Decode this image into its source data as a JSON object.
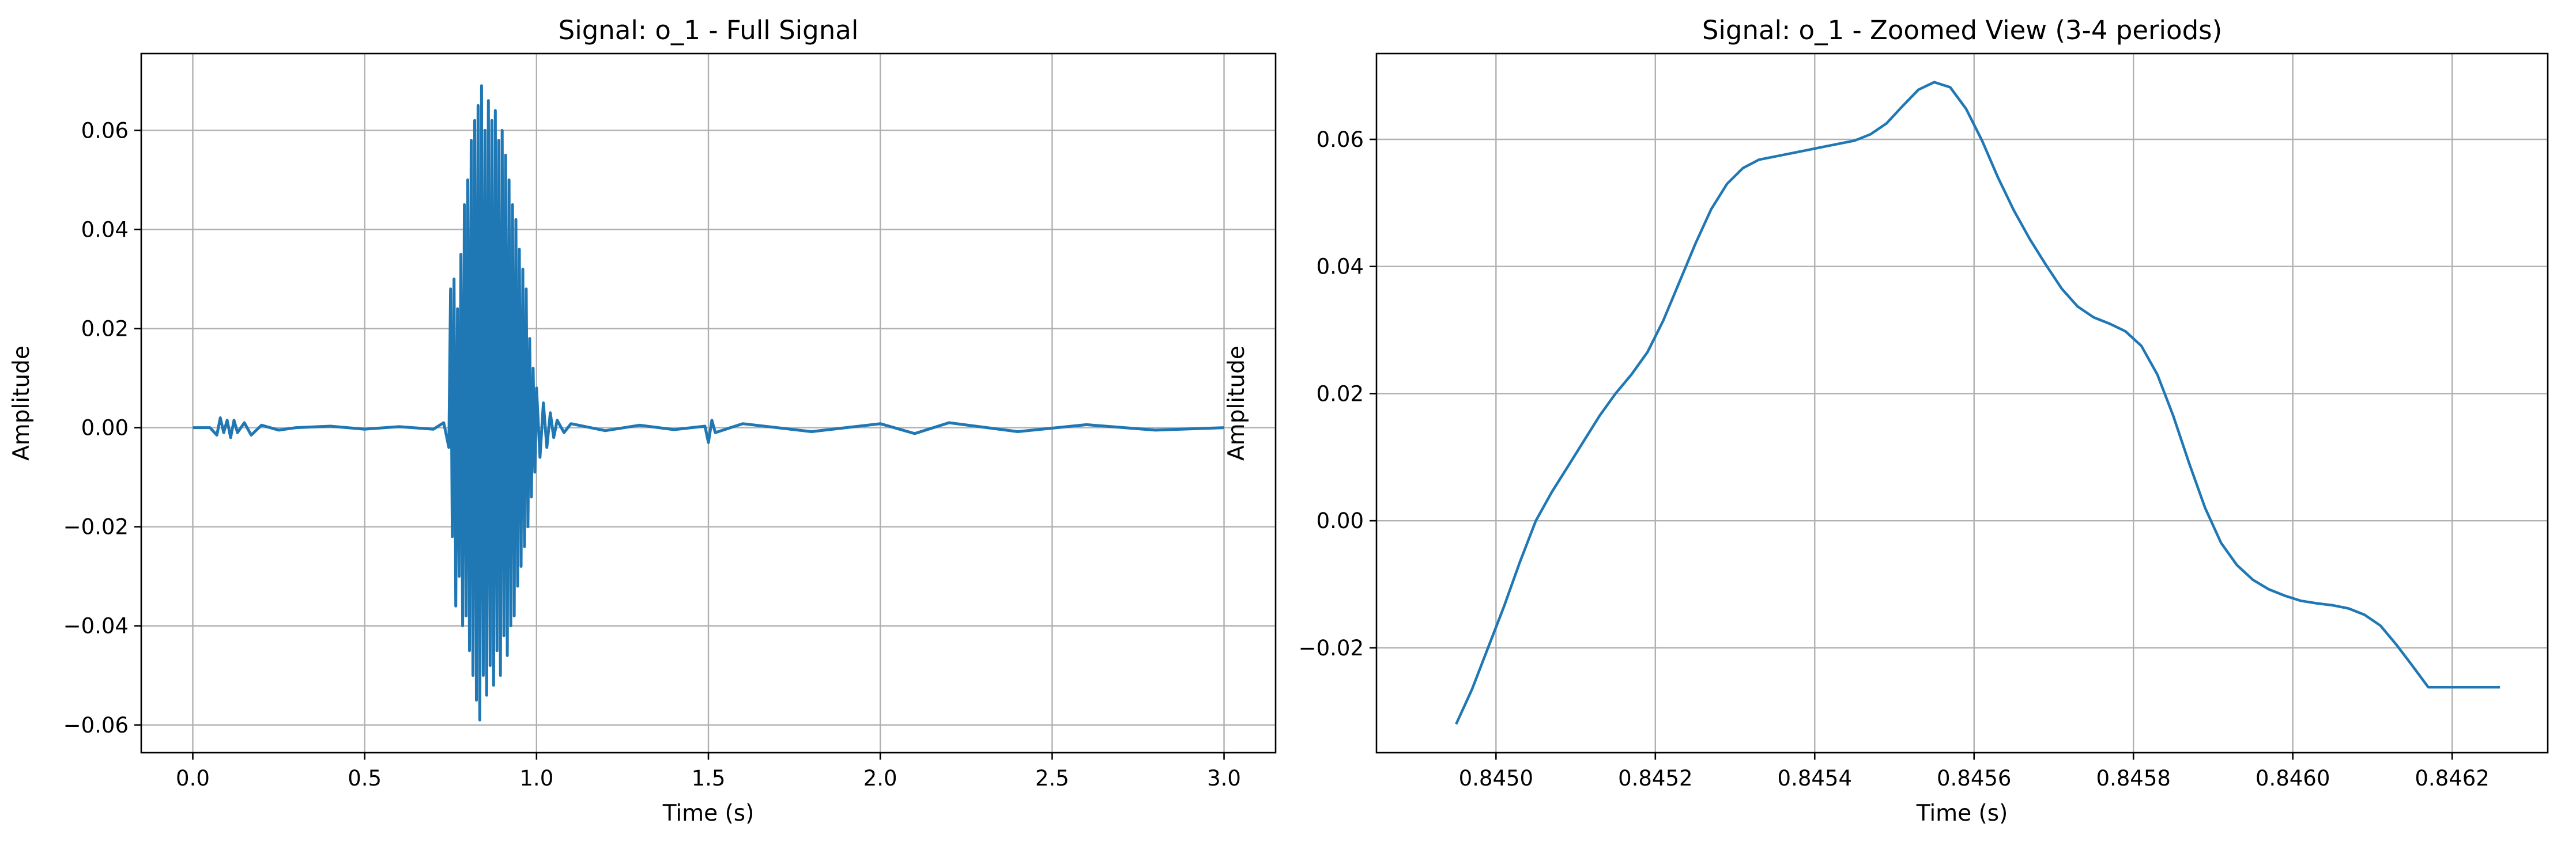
{
  "chart_data": [
    {
      "type": "line",
      "title": "Signal: o_1 - Full Signal",
      "xlabel": "Time (s)",
      "ylabel": "Amplitude",
      "xlim": [
        -0.15,
        3.15
      ],
      "ylim": [
        -0.0656,
        0.0755
      ],
      "xticks": [
        0.0,
        0.5,
        1.0,
        1.5,
        2.0,
        2.5,
        3.0
      ],
      "xtick_labels": [
        "0.0",
        "0.5",
        "1.0",
        "1.5",
        "2.0",
        "2.5",
        "3.0"
      ],
      "yticks": [
        -0.06,
        -0.04,
        -0.02,
        0.0,
        0.02,
        0.04,
        0.06
      ],
      "ytick_labels": [
        "−0.06",
        "−0.04",
        "−0.02",
        "0.00",
        "0.02",
        "0.04",
        "0.06"
      ],
      "grid": true,
      "color": "#1f77b4",
      "series": [
        {
          "x": [
            0.0,
            0.05,
            0.07,
            0.08,
            0.09,
            0.1,
            0.11,
            0.12,
            0.13,
            0.15,
            0.17,
            0.2,
            0.25,
            0.3,
            0.4,
            0.5,
            0.6,
            0.7,
            0.73,
            0.745,
            0.75,
            0.755,
            0.76,
            0.765,
            0.77,
            0.775,
            0.78,
            0.785,
            0.79,
            0.795,
            0.8,
            0.805,
            0.81,
            0.815,
            0.82,
            0.825,
            0.83,
            0.835,
            0.84,
            0.845,
            0.85,
            0.855,
            0.86,
            0.865,
            0.87,
            0.875,
            0.88,
            0.885,
            0.89,
            0.895,
            0.9,
            0.905,
            0.91,
            0.915,
            0.92,
            0.925,
            0.93,
            0.935,
            0.94,
            0.945,
            0.95,
            0.955,
            0.96,
            0.965,
            0.97,
            0.975,
            0.98,
            0.985,
            0.99,
            0.995,
            1.0,
            1.01,
            1.02,
            1.03,
            1.04,
            1.05,
            1.06,
            1.08,
            1.1,
            1.2,
            1.3,
            1.4,
            1.49,
            1.5,
            1.51,
            1.52,
            1.6,
            1.8,
            2.0,
            2.1,
            2.2,
            2.4,
            2.6,
            2.8,
            3.0
          ],
          "y": [
            0.0,
            0.0,
            -0.0015,
            0.002,
            -0.001,
            0.0015,
            -0.002,
            0.0015,
            -0.001,
            0.001,
            -0.0015,
            0.0005,
            -0.0005,
            0.0,
            0.0003,
            -0.0003,
            0.0002,
            -0.0003,
            0.001,
            -0.004,
            0.028,
            -0.022,
            0.03,
            -0.036,
            0.024,
            -0.03,
            0.035,
            -0.04,
            0.045,
            -0.038,
            0.05,
            -0.045,
            0.058,
            -0.05,
            0.062,
            -0.055,
            0.065,
            -0.059,
            0.069,
            -0.05,
            0.06,
            -0.054,
            0.066,
            -0.048,
            0.062,
            -0.052,
            0.064,
            -0.045,
            0.058,
            -0.05,
            0.06,
            -0.042,
            0.055,
            -0.046,
            0.05,
            -0.04,
            0.045,
            -0.038,
            0.042,
            -0.032,
            0.036,
            -0.028,
            0.032,
            -0.024,
            0.028,
            -0.02,
            0.018,
            -0.014,
            0.012,
            -0.009,
            0.008,
            -0.006,
            0.005,
            -0.004,
            0.003,
            -0.002,
            0.0015,
            -0.001,
            0.0008,
            -0.0006,
            0.0005,
            -0.0004,
            0.0003,
            -0.003,
            0.0015,
            -0.001,
            0.0008,
            -0.0008,
            0.0008,
            -0.0012,
            0.001,
            -0.0008,
            0.0006,
            -0.0005,
            0.0
          ]
        }
      ]
    },
    {
      "type": "line",
      "title": "Signal: o_1 - Zoomed View (3-4 periods)",
      "xlabel": "Time (s)",
      "ylabel": "Amplitude",
      "xlim": [
        0.84485,
        0.84632
      ],
      "ylim": [
        -0.0365,
        0.0735
      ],
      "xticks": [
        0.845,
        0.8452,
        0.8454,
        0.8456,
        0.8458,
        0.846,
        0.8462
      ],
      "xtick_labels": [
        "0.8450",
        "0.8452",
        "0.8454",
        "0.8456",
        "0.8458",
        "0.8460",
        "0.8462"
      ],
      "yticks": [
        -0.02,
        0.0,
        0.02,
        0.04,
        0.06
      ],
      "ytick_labels": [
        "−0.02",
        "0.00",
        "0.02",
        "0.04",
        "0.06"
      ],
      "grid": true,
      "color": "#1f77b4",
      "series": [
        {
          "x": [
            0.84495,
            0.84497,
            0.84499,
            0.84501,
            0.84503,
            0.84505,
            0.84507,
            0.84509,
            0.84511,
            0.84513,
            0.84515,
            0.84517,
            0.84519,
            0.84521,
            0.84523,
            0.84525,
            0.84527,
            0.84529,
            0.84531,
            0.84533,
            0.84535,
            0.84537,
            0.84539,
            0.84541,
            0.84543,
            0.84545,
            0.84547,
            0.84549,
            0.84551,
            0.84553,
            0.84555,
            0.84557,
            0.84559,
            0.84561,
            0.84563,
            0.84565,
            0.84567,
            0.84569,
            0.84571,
            0.84573,
            0.84575,
            0.84577,
            0.84579,
            0.84581,
            0.84583,
            0.84585,
            0.84587,
            0.84589,
            0.84591,
            0.84593,
            0.84595,
            0.84597,
            0.84599,
            0.84601,
            0.84603,
            0.84605,
            0.84607,
            0.84609,
            0.84611,
            0.84613,
            0.84615,
            0.84617,
            0.84619,
            0.84621,
            0.84623,
            0.84625,
            0.84626
          ],
          "y": [
            -0.032,
            -0.0265,
            -0.02,
            -0.0135,
            -0.0065,
            0.0,
            0.0045,
            0.0085,
            0.0125,
            0.0165,
            0.02,
            0.023,
            0.0265,
            0.0315,
            0.0375,
            0.0435,
            0.049,
            0.053,
            0.0555,
            0.0568,
            0.0573,
            0.0578,
            0.0583,
            0.0588,
            0.0593,
            0.0598,
            0.0608,
            0.0625,
            0.0652,
            0.0678,
            0.069,
            0.0682,
            0.0648,
            0.0598,
            0.054,
            0.0488,
            0.0443,
            0.0403,
            0.0365,
            0.0337,
            0.032,
            0.031,
            0.0298,
            0.0275,
            0.023,
            0.0165,
            0.009,
            0.002,
            -0.0035,
            -0.007,
            -0.0093,
            -0.0108,
            -0.0118,
            -0.0126,
            -0.013,
            -0.0133,
            -0.0138,
            -0.0148,
            -0.0165,
            -0.0195,
            -0.0228,
            -0.0262,
            -0.0262,
            -0.0262,
            -0.0262,
            -0.0262,
            -0.0262
          ]
        }
      ]
    }
  ]
}
